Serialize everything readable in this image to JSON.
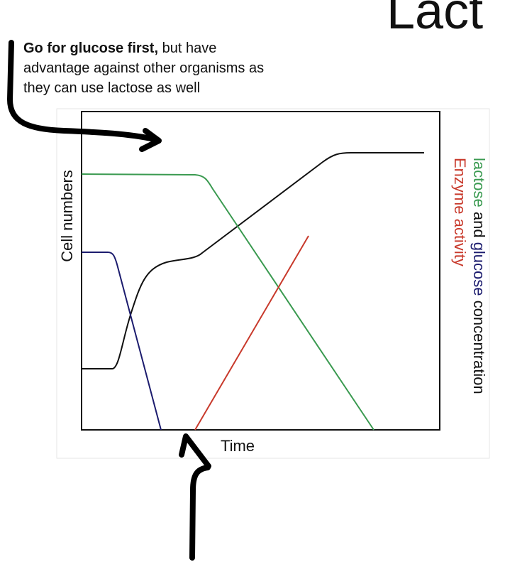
{
  "title": "Lact",
  "annotation": {
    "bold": "Go for glucose first,",
    "lines": [
      "but have",
      "advantage against other organisms as",
      "they can use lactose as well"
    ]
  },
  "graph": {
    "y_label": "Cell numbers",
    "x_label": "Time",
    "right_label": {
      "lactose": "lactose",
      "and": "and",
      "glucose": "glucose",
      "concentration": "concentration"
    },
    "enzyme_label": "Enzyme activity"
  }
}
